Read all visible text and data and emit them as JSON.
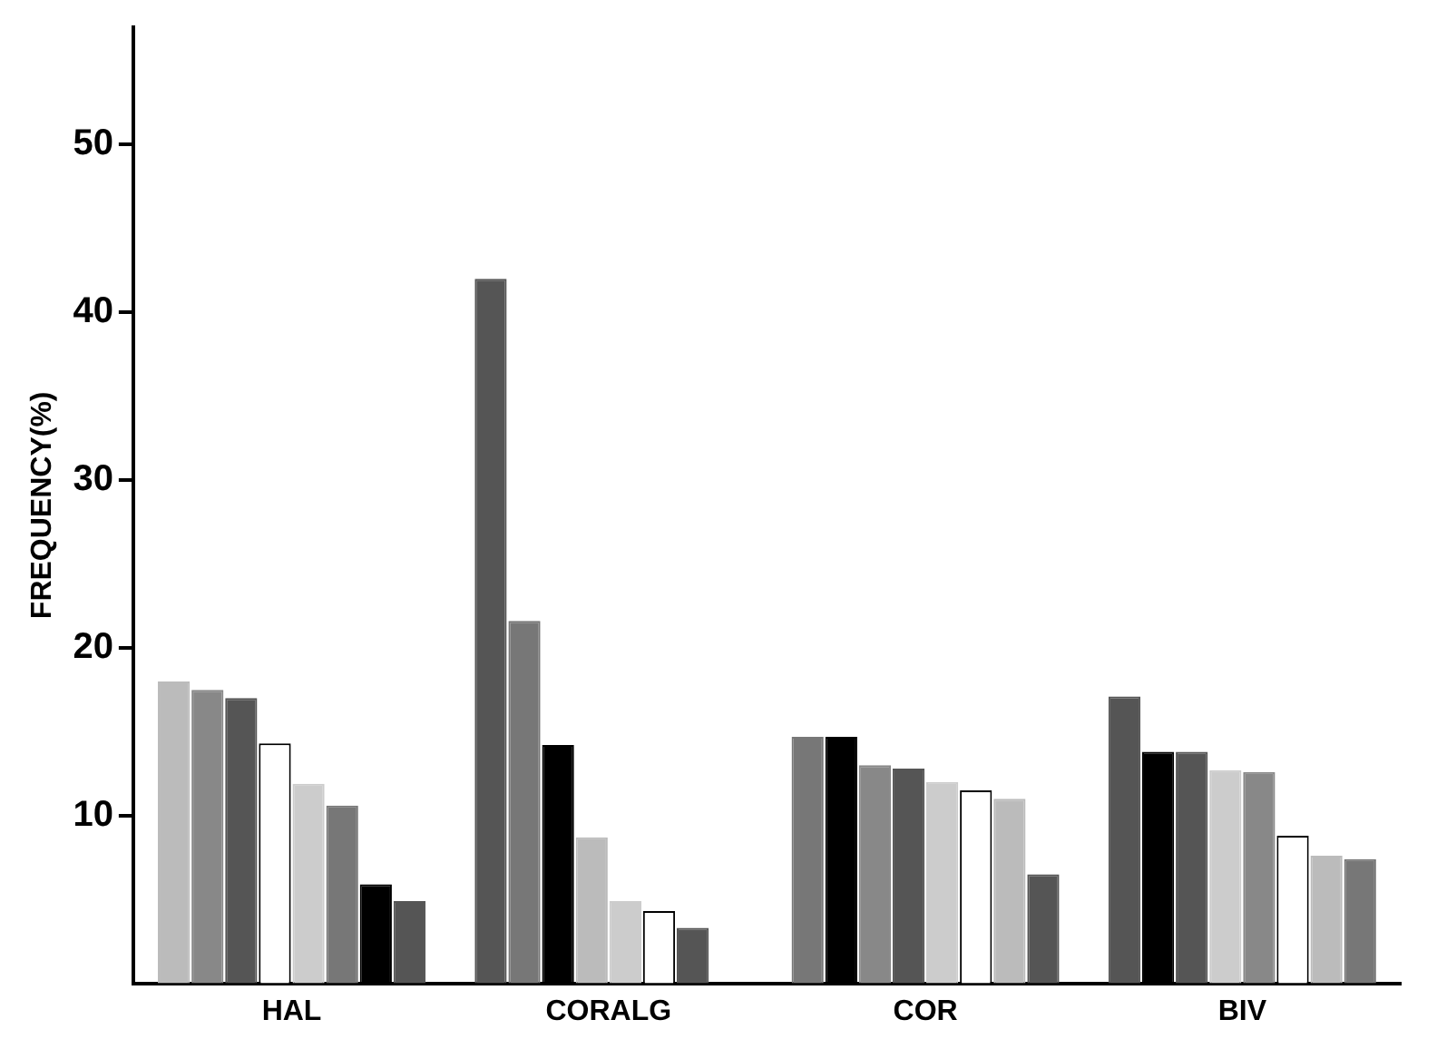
{
  "chart_data": {
    "type": "bar",
    "ylabel": "FREQUENCY(%)",
    "categories": [
      "HAL",
      "CORALG",
      "COR",
      "BIV"
    ],
    "series": [
      {
        "colors": [
          "#bbbbbb",
          "#555555",
          "#777777",
          "#555555"
        ],
        "values": [
          18,
          42,
          14.7,
          17.1
        ]
      },
      {
        "colors": [
          "#888888",
          "#777777",
          "#000000",
          "#000000"
        ],
        "values": [
          17.5,
          21.6,
          14.7,
          13.8
        ]
      },
      {
        "colors": [
          "#555555",
          "#000000",
          "#888888",
          "#555555"
        ],
        "values": [
          17,
          14.2,
          13,
          13.8
        ]
      },
      {
        "colors": [
          "#ffffff",
          "#bbbbbb",
          "#555555",
          "#cccccc"
        ],
        "values": [
          14.3,
          8.7,
          12.8,
          12.7
        ]
      },
      {
        "colors": [
          "#cccccc",
          "#cccccc",
          "#cccccc",
          "#888888"
        ],
        "values": [
          11.9,
          4.9,
          12,
          12.6
        ]
      },
      {
        "colors": [
          "#777777",
          "#ffffff",
          "#ffffff",
          "#ffffff"
        ],
        "values": [
          10.6,
          4.3,
          11.5,
          8.8
        ]
      },
      {
        "colors": [
          "#000000",
          "#555555",
          "#bbbbbb",
          "#bbbbbb"
        ],
        "values": [
          5.9,
          3.3,
          11,
          7.6
        ]
      },
      {
        "colors": [
          "#555555",
          null,
          "#555555",
          "#777777"
        ],
        "values": [
          4.9,
          null,
          6.5,
          7.4
        ]
      }
    ],
    "ylim": [
      0,
      57
    ],
    "yticks": [
      10,
      20,
      30,
      40,
      50
    ],
    "grid": false,
    "legend": false
  }
}
